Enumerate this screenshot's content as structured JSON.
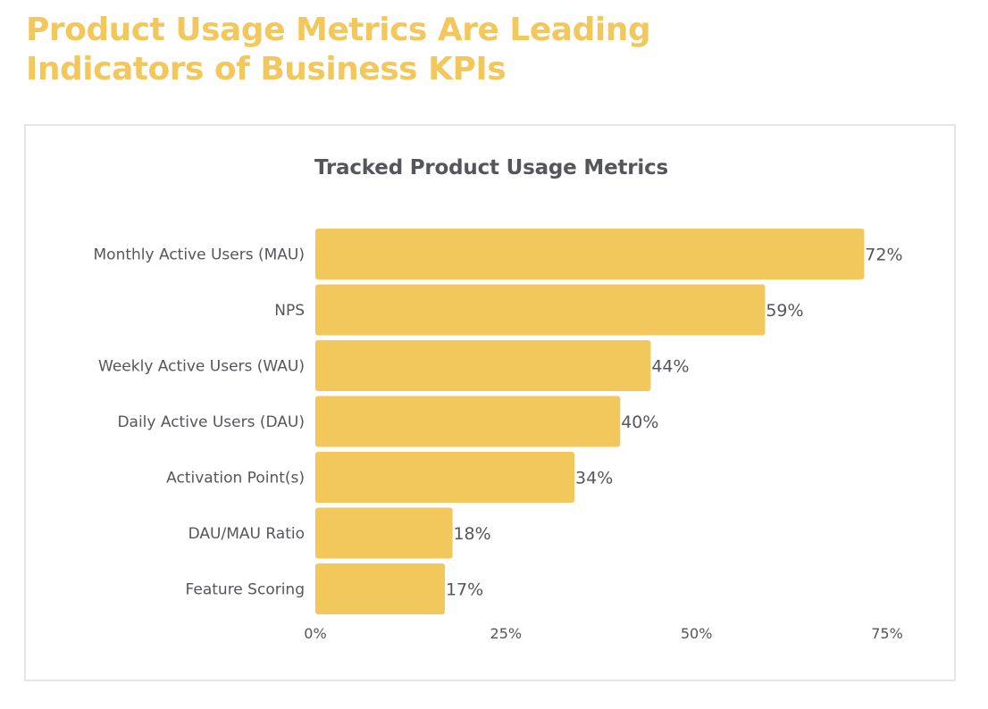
{
  "headline": "Product Usage Metrics Are Leading Indicators of Business KPIs",
  "colors": {
    "headline": "#f2c75c",
    "bar": "#f2c75c",
    "text": "#55565b",
    "card_border": "#e3e5e8"
  },
  "chart_data": {
    "type": "bar",
    "orientation": "horizontal",
    "title": "Tracked Product Usage Metrics",
    "categories": [
      "Monthly Active Users (MAU)",
      "NPS",
      "Weekly Active Users (WAU)",
      "Daily Active Users (DAU)",
      "Activation Point(s)",
      "DAU/MAU Ratio",
      "Feature Scoring"
    ],
    "values": [
      72,
      59,
      44,
      40,
      34,
      18,
      17
    ],
    "value_labels": [
      "72%",
      "59%",
      "44%",
      "40%",
      "34%",
      "18%",
      "17%"
    ],
    "xticks": [
      "0%",
      "25%",
      "50%",
      "75%"
    ],
    "xtick_values": [
      0,
      25,
      50,
      75
    ],
    "xlim": [
      0,
      75
    ],
    "grid": false,
    "legend": "none"
  }
}
